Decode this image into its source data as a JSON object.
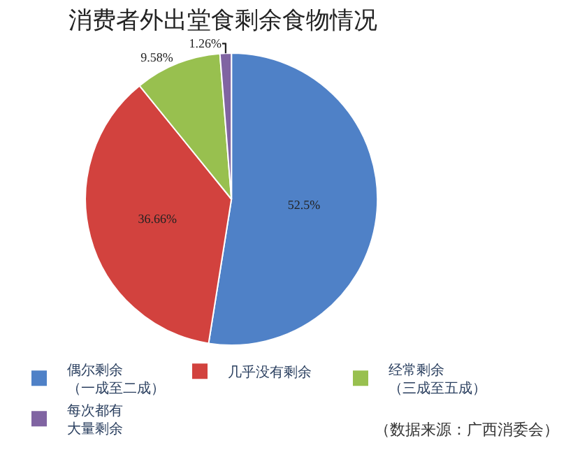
{
  "chart_data": {
    "type": "pie",
    "title": "消费者外出堂食剩余食物情况",
    "categories": [
      "偶尔剩余（一成至二成）",
      "几乎没有剩余",
      "经常剩余（三成至五成）",
      "每次都有大量剩余"
    ],
    "values": [
      52.5,
      36.66,
      9.58,
      1.26
    ],
    "value_labels": [
      "52.5%",
      "36.66%",
      "9.58%",
      "1.26%"
    ],
    "colors": [
      "#4f81c7",
      "#d2423e",
      "#98c04f",
      "#8064a2"
    ],
    "legend": "bottom",
    "annotations": [
      "（数据来源：广西消委会）"
    ]
  }
}
